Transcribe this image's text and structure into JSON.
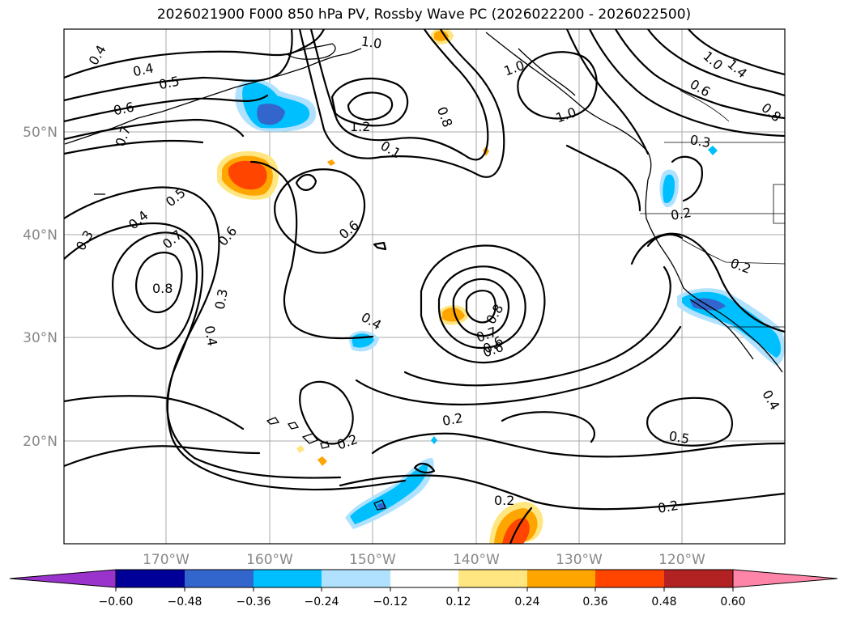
{
  "title": "2026021900 F000 850 hPa PV, Rossby Wave PC (2026022200 - 2026022500)",
  "map": {
    "lon_ticks": [
      "170°W",
      "160°W",
      "150°W",
      "140°W",
      "130°W",
      "120°W"
    ],
    "lat_ticks": [
      "50°N",
      "40°N",
      "30°N",
      "20°N"
    ],
    "contour_labels": [
      "0.4",
      "0.4",
      "0.5",
      "0.6",
      "0.7",
      "1.0",
      "1.2",
      "1.0",
      "1.0",
      "1.0",
      "1.4",
      "0.6",
      "0.8",
      "0.8",
      "0.3",
      "0.1",
      "0.5",
      "0.4",
      "0.6",
      "0.7",
      "0.3",
      "0.6",
      "0.6",
      "0.8",
      "0.3",
      "0.4",
      "0.4",
      "0.2",
      "0.2",
      "0.8",
      "0.7",
      "0.6",
      "0.2",
      "0.2",
      "0.5",
      "0.2",
      "0.4",
      "0.2"
    ]
  },
  "colorbar": {
    "ticks": [
      "−0.60",
      "−0.48",
      "−0.36",
      "−0.24",
      "−0.12",
      "0.12",
      "0.24",
      "0.36",
      "0.48",
      "0.60"
    ],
    "colors": [
      "#9933cc",
      "#000099",
      "#3366cc",
      "#00bfff",
      "#b0e2ff",
      "#ffffff",
      "#ffe680",
      "#ffa500",
      "#ff4500",
      "#b22222",
      "#ff85a8"
    ]
  },
  "legend_colors": {
    "neg_light": "#b0e2ff",
    "neg_mid": "#00bfff",
    "neg_strong": "#3366cc",
    "pos_light": "#ffe680",
    "pos_mid": "#ffa500",
    "pos_strong": "#ff4500"
  }
}
